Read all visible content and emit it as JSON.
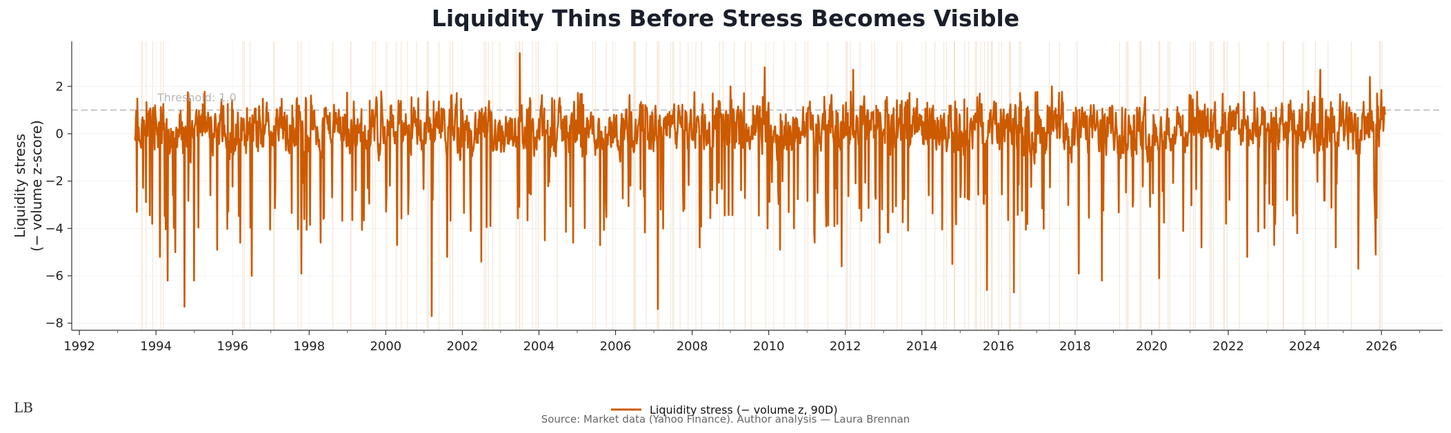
{
  "chart_data": {
    "type": "line",
    "title": "Liquidity Thins Before Stress Becomes Visible",
    "ylabel_lines": [
      "Liquidity stress",
      "(− volume z-score)"
    ],
    "xlabel": "",
    "xlim": [
      1991.8,
      2027.6
    ],
    "ylim": [
      -8.3,
      3.9
    ],
    "x_ticks": [
      1992,
      1994,
      1996,
      1998,
      2000,
      2002,
      2004,
      2006,
      2008,
      2010,
      2012,
      2014,
      2016,
      2018,
      2020,
      2022,
      2024,
      2026
    ],
    "x_tick_labels": [
      "1992",
      "1994",
      "1996",
      "1998",
      "2000",
      "2002",
      "2004",
      "2006",
      "2008",
      "2010",
      "2012",
      "2014",
      "2016",
      "2018",
      "2020",
      "2022",
      "2024",
      "2026"
    ],
    "y_ticks": [
      2,
      0,
      -2,
      -4,
      -6,
      -8
    ],
    "y_tick_labels": [
      "2",
      "0",
      "−2",
      "−4",
      "−6",
      "−8"
    ],
    "threshold": {
      "value": 1.0,
      "label": "Threshold: 1.0"
    },
    "series": [
      {
        "name": "Liquidity stress (− volume z, 90D)",
        "color": "#cc5a00",
        "x_start": 1993.45,
        "x_end": 2026.1,
        "typical_range": [
          -2.0,
          1.0
        ],
        "spikes": [
          [
            1993.5,
            -3.3
          ],
          [
            1993.9,
            -3.8
          ],
          [
            1994.1,
            -5.2
          ],
          [
            1994.3,
            -6.2
          ],
          [
            1994.5,
            -5.0
          ],
          [
            1994.75,
            -7.3
          ],
          [
            1995.0,
            -6.2
          ],
          [
            1995.6,
            -4.9
          ],
          [
            1996.2,
            -4.6
          ],
          [
            1996.5,
            -6.0
          ],
          [
            1997.8,
            -5.9
          ],
          [
            1998.3,
            -4.6
          ],
          [
            2000.3,
            -4.7
          ],
          [
            2001.2,
            -7.7
          ],
          [
            2001.6,
            -5.2
          ],
          [
            2002.5,
            -5.4
          ],
          [
            2003.5,
            3.4
          ],
          [
            2004.15,
            -4.5
          ],
          [
            2004.9,
            -4.6
          ],
          [
            2005.6,
            -4.7
          ],
          [
            2007.1,
            -7.4
          ],
          [
            2008.2,
            -4.8
          ],
          [
            2009.0,
            2.0
          ],
          [
            2009.9,
            2.8
          ],
          [
            2010.3,
            -4.9
          ],
          [
            2011.2,
            -4.6
          ],
          [
            2011.9,
            -5.6
          ],
          [
            2012.2,
            2.7
          ],
          [
            2012.9,
            -4.6
          ],
          [
            2014.8,
            -5.5
          ],
          [
            2015.7,
            -6.6
          ],
          [
            2016.4,
            -6.7
          ],
          [
            2017.4,
            2.0
          ],
          [
            2018.1,
            -5.9
          ],
          [
            2018.7,
            -6.2
          ],
          [
            2020.2,
            -6.1
          ],
          [
            2021.3,
            -4.8
          ],
          [
            2022.5,
            -5.2
          ],
          [
            2023.2,
            -4.7
          ],
          [
            2023.8,
            -4.2
          ],
          [
            2024.4,
            2.7
          ],
          [
            2024.8,
            -4.8
          ],
          [
            2025.4,
            -5.7
          ],
          [
            2025.7,
            2.4
          ],
          [
            2025.85,
            -5.1
          ],
          [
            2026.0,
            1.85
          ]
        ]
      }
    ],
    "stress_band_color": "#f2dfcc",
    "legend": {
      "placement": "bottom-center",
      "label": "Liquidity stress (− volume z, 90D)"
    },
    "source": "Source: Market data (Yahoo Finance). Author analysis — Laura Brennan",
    "logo_text": "LB"
  }
}
